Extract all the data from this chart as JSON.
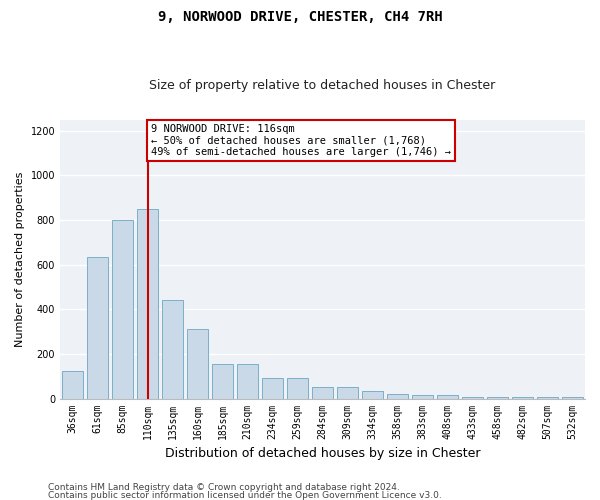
{
  "title": "9, NORWOOD DRIVE, CHESTER, CH4 7RH",
  "subtitle": "Size of property relative to detached houses in Chester",
  "xlabel": "Distribution of detached houses by size in Chester",
  "ylabel": "Number of detached properties",
  "bar_color": "#c9d9e8",
  "bar_edge_color": "#7aafc8",
  "categories": [
    "36sqm",
    "61sqm",
    "85sqm",
    "110sqm",
    "135sqm",
    "160sqm",
    "185sqm",
    "210sqm",
    "234sqm",
    "259sqm",
    "284sqm",
    "309sqm",
    "334sqm",
    "358sqm",
    "383sqm",
    "408sqm",
    "433sqm",
    "458sqm",
    "482sqm",
    "507sqm",
    "532sqm"
  ],
  "values": [
    125,
    635,
    800,
    850,
    440,
    310,
    155,
    155,
    90,
    90,
    50,
    50,
    35,
    20,
    15,
    15,
    5,
    5,
    5,
    5,
    5
  ],
  "vline_x_index": 3,
  "vline_color": "#cc0000",
  "annotation_text": "9 NORWOOD DRIVE: 116sqm\n← 50% of detached houses are smaller (1,768)\n49% of semi-detached houses are larger (1,746) →",
  "annotation_box_facecolor": "#ffffff",
  "annotation_box_edgecolor": "#cc0000",
  "ylim": [
    0,
    1250
  ],
  "yticks": [
    0,
    200,
    400,
    600,
    800,
    1000,
    1200
  ],
  "footer_line1": "Contains HM Land Registry data © Crown copyright and database right 2024.",
  "footer_line2": "Contains public sector information licensed under the Open Government Licence v3.0.",
  "bg_color": "#ffffff",
  "plot_bg_color": "#eef2f7",
  "title_fontsize": 10,
  "subtitle_fontsize": 9,
  "ylabel_fontsize": 8,
  "xlabel_fontsize": 9,
  "tick_fontsize": 7,
  "footer_fontsize": 6.5
}
